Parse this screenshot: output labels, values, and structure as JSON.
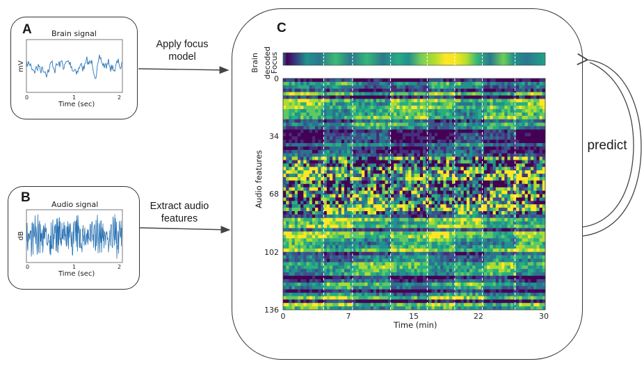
{
  "panel_a": {
    "letter": "A",
    "title": "Brain signal",
    "ylabel": "mV",
    "xlabel": "Time (sec)",
    "xticks": [
      "0",
      "1",
      "2"
    ]
  },
  "panel_b": {
    "letter": "B",
    "title": "Audio signal",
    "ylabel": "dB",
    "xlabel": "Time (sec)",
    "xticks": [
      "0",
      "1",
      "2"
    ]
  },
  "arrow_a_label_line1": "Apply focus",
  "arrow_a_label_line2": "model",
  "arrow_b_label_line1": "Extract audio",
  "arrow_b_label_line2": "features",
  "panel_c": {
    "letter": "C",
    "focus_label_line1": "Brain",
    "focus_label_line2": "decoded",
    "focus_label_line3": "Focus",
    "ylabel": "Audio features",
    "xlabel": "Time (min)",
    "yticks": [
      "0",
      "34",
      "68",
      "102",
      "136"
    ],
    "xticks": [
      "0",
      "7",
      "15",
      "22",
      "30"
    ]
  },
  "predict_label": "predict",
  "colors": {
    "viridis_dark": "#440154",
    "viridis_mid": "#21918c",
    "viridis_light": "#fde725",
    "signal": "#1f77b4"
  }
}
